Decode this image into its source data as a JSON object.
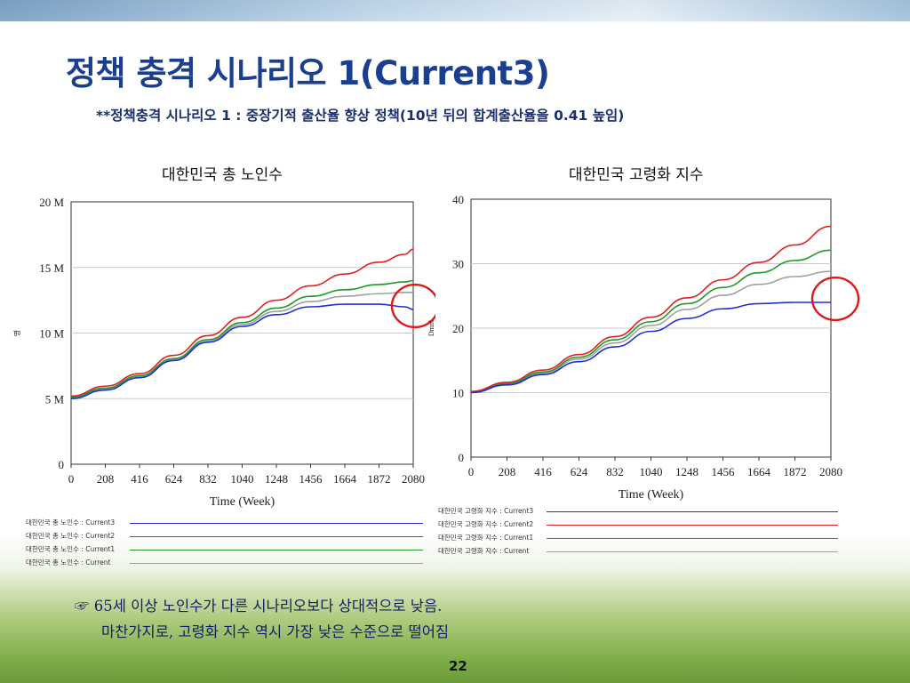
{
  "slide": {
    "title": "정책 충격 시나리오 1(Current3)",
    "subtitle": "**정책충격 시나리오 1 : 중장기적 출산율 향상 정책(10년 뒤의 합계출산율을  0.41 높임)",
    "note_line1": "☞ 65세 이상 노인수가 다른 시나리오보다 상대적으로 낮음.",
    "note_line2": "마찬가지로, 고령화 지수 역시 가장 낮은 수준으로 떨어짐",
    "page_number": "22"
  },
  "chart_data": [
    {
      "type": "line",
      "title": "대한민국 총 노인수",
      "xlabel": "Time (Week)",
      "ylabel": "명",
      "xlim": [
        0,
        2080
      ],
      "ylim": [
        0,
        20000000
      ],
      "x_ticks": [
        0,
        208,
        416,
        624,
        832,
        1040,
        1248,
        1456,
        1664,
        1872,
        2080
      ],
      "y_ticks": [
        0,
        5000000,
        10000000,
        15000000,
        20000000
      ],
      "y_tick_labels": [
        "0",
        "5 M",
        "10 M",
        "15 M",
        "20 M"
      ],
      "grid": true,
      "x": [
        0,
        208,
        416,
        624,
        832,
        1040,
        1248,
        1456,
        1664,
        1872,
        2030,
        2080
      ],
      "series": [
        {
          "name": "대한민국 총 노인수 : Current3",
          "color": "#1f2fd6",
          "values": [
            5000000,
            5650000,
            6600000,
            7900000,
            9300000,
            10500000,
            11400000,
            12000000,
            12200000,
            12200000,
            12000000,
            11800000
          ]
        },
        {
          "name": "대한민국 총 노인수 : Current2",
          "color": "#e02020",
          "values": [
            5200000,
            5950000,
            6900000,
            8300000,
            9800000,
            11200000,
            12500000,
            13600000,
            14500000,
            15400000,
            16000000,
            16400000
          ]
        },
        {
          "name": "대한민국 총 노인수 : Current1",
          "color": "#1f9a2a",
          "values": [
            5100000,
            5800000,
            6750000,
            8050000,
            9500000,
            10800000,
            11900000,
            12800000,
            13300000,
            13700000,
            13900000,
            14000000
          ]
        },
        {
          "name": "대한민국 총 노인수 : Current",
          "color": "#a0a0a0",
          "values": [
            5050000,
            5700000,
            6650000,
            7950000,
            9380000,
            10650000,
            11650000,
            12400000,
            12800000,
            13000000,
            13100000,
            13100000
          ]
        }
      ]
    },
    {
      "type": "line",
      "title": "대한민국 고령화 지수",
      "xlabel": "Time (Week)",
      "ylabel": "Dmnl",
      "xlim": [
        0,
        2080
      ],
      "ylim": [
        0,
        40
      ],
      "x_ticks": [
        0,
        208,
        416,
        624,
        832,
        1040,
        1248,
        1456,
        1664,
        1872,
        2080
      ],
      "y_ticks": [
        0,
        10,
        20,
        30,
        40
      ],
      "y_tick_labels": [
        "0",
        "10",
        "20",
        "30",
        "40"
      ],
      "grid": true,
      "x": [
        0,
        208,
        416,
        624,
        832,
        1040,
        1248,
        1456,
        1664,
        1872,
        2080
      ],
      "series": [
        {
          "name": "대한민국 고령화 지수 : Current3",
          "color": "#1f2fd6",
          "values": [
            10,
            11.2,
            12.8,
            14.8,
            17.1,
            19.5,
            21.5,
            23,
            23.8,
            24,
            24
          ]
        },
        {
          "name": "대한민국 고령화 지수 : Current2",
          "color": "#e02020",
          "values": [
            10.2,
            11.6,
            13.5,
            15.9,
            18.7,
            21.7,
            24.7,
            27.5,
            30.2,
            32.9,
            35.8
          ]
        },
        {
          "name": "대한민국 고령화 지수 : Current1",
          "color": "#1f9a2a",
          "values": [
            10.1,
            11.4,
            13.2,
            15.5,
            18.2,
            21,
            23.8,
            26.3,
            28.6,
            30.5,
            32.1
          ]
        },
        {
          "name": "대한민국 고령화 지수 : Current",
          "color": "#a0a0a0",
          "values": [
            10.1,
            11.3,
            13,
            15.2,
            17.7,
            20.4,
            22.9,
            25.1,
            26.8,
            28,
            28.8
          ]
        }
      ]
    }
  ]
}
